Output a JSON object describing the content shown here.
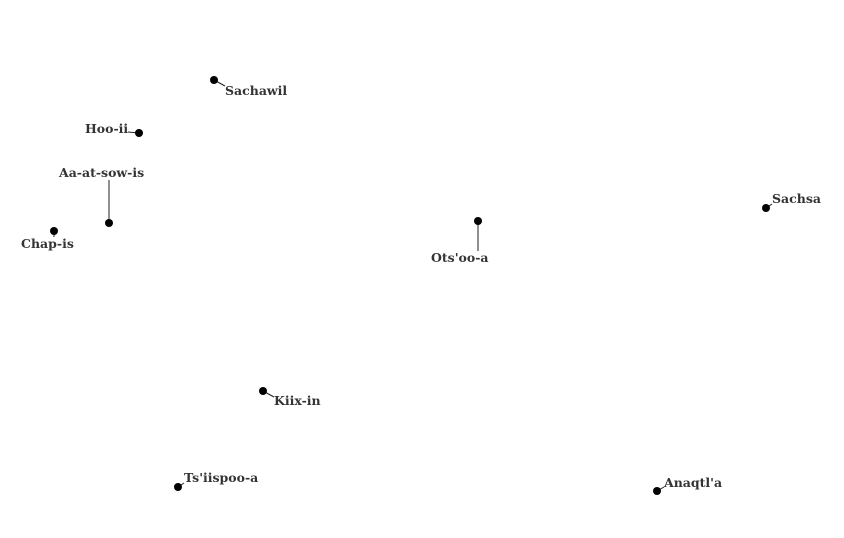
{
  "map": {
    "style": {
      "background": "#ffffff",
      "point_color": "#000000",
      "leader_color": "#222222",
      "label_color": "#333333"
    },
    "places": [
      {
        "id": "sachawil",
        "name": "Sachawil"
      },
      {
        "id": "hoo-ii",
        "name": "Hoo-ii"
      },
      {
        "id": "aa-at-sow-is",
        "name": "Aa-at-sow-is"
      },
      {
        "id": "chap-is",
        "name": "Chap-is"
      },
      {
        "id": "otsoo-a",
        "name": "Ots'oo-a"
      },
      {
        "id": "sachsa",
        "name": "Sachsa"
      },
      {
        "id": "kiix-in",
        "name": "Kiix-in"
      },
      {
        "id": "tsiispoo-a",
        "name": "Ts'iispoo-a"
      },
      {
        "id": "anaqtla",
        "name": "Anaqtl'a"
      }
    ]
  }
}
